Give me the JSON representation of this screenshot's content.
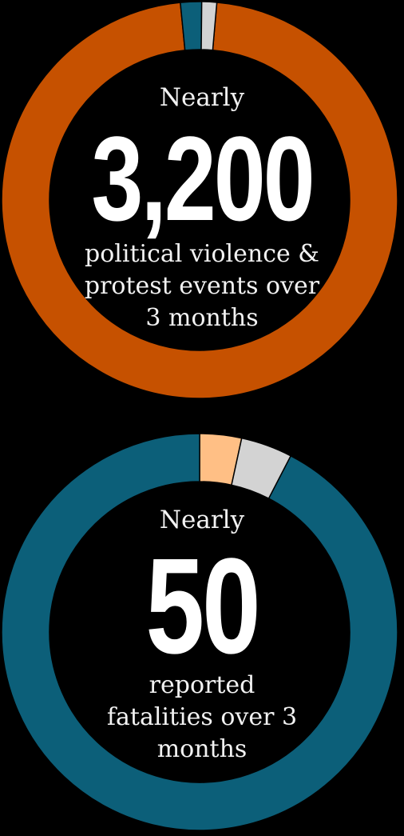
{
  "chart_data": [
    {
      "type": "pie",
      "subtype": "donut",
      "slices": [
        {
          "value": 95.7,
          "color": "#c65100"
        },
        {
          "value": 1.7,
          "color": "#0c5f79"
        },
        {
          "value": 1.2,
          "color": "#d3d3d3"
        }
      ],
      "start_angle_deg": 5,
      "center": {
        "prefix": "Nearly",
        "number": "3,200",
        "caption_lines": [
          "political violence &",
          "protest events over",
          "3 months"
        ]
      }
    },
    {
      "type": "pie",
      "subtype": "donut",
      "slices": [
        {
          "value": 92.4,
          "color": "#0c5f79"
        },
        {
          "value": 3.4,
          "color": "#ffbf85"
        },
        {
          "value": 4.2,
          "color": "#d3d3d3"
        }
      ],
      "start_angle_deg": 27.4,
      "center": {
        "prefix": "Nearly",
        "number": "50",
        "caption_lines": [
          "reported",
          "fatalities over 3",
          "months"
        ]
      }
    }
  ]
}
